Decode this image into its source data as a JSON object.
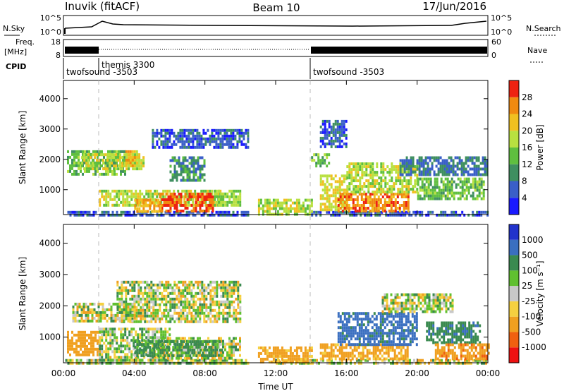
{
  "header": {
    "station": "Inuvik (fitACF)",
    "beam": "Beam 10",
    "date": "17/Jun/2016"
  },
  "top_panels": {
    "nsky_label": "N.Sky",
    "nsearch_label": "N.Search",
    "noise_ticks": [
      "10^5",
      "10^0"
    ],
    "freq_label_1": "Freq.",
    "freq_label_2": "[MHz]",
    "freq_ticks": [
      "18",
      "8"
    ],
    "nave_label": "Nave",
    "nave_ticks": [
      "60",
      "0"
    ],
    "cpid_label": "CPID",
    "cpid_segments": [
      {
        "label": "twofsound -3503",
        "start_hour": 0
      },
      {
        "label": "themis 3300",
        "start_hour": 2
      },
      {
        "label": "twofsound -3503",
        "start_hour": 14
      }
    ]
  },
  "x_axis": {
    "label": "Time UT",
    "ticks": [
      "00:00",
      "04:00",
      "08:00",
      "12:00",
      "16:00",
      "20:00",
      "00:00"
    ]
  },
  "chart_data": [
    {
      "type": "heatmap",
      "name": "power",
      "ylabel": "Slant Range [km]",
      "yticks": [
        1000,
        2000,
        3000,
        4000
      ],
      "ylim": [
        180,
        4600
      ],
      "xlim_hours": [
        0,
        24
      ],
      "colorbar_label": "Power [dB]",
      "colorbar_ticks": [
        "28",
        "24",
        "20",
        "16",
        "12",
        "8",
        "4"
      ],
      "colorbar_colors": [
        "#1a1aff",
        "#3a5fc8",
        "#3f8f60",
        "#5fbf3f",
        "#b8e040",
        "#f0c020",
        "#f08a10",
        "#ee2211"
      ],
      "colorbar_range": [
        0,
        32
      ],
      "regions": [
        {
          "t0": 0.1,
          "t1": 10.5,
          "r0": 180,
          "r1": 300,
          "value": 6
        },
        {
          "t0": 0.2,
          "t1": 3.5,
          "r0": 1500,
          "r1": 2300,
          "value": 14
        },
        {
          "t0": 1.0,
          "t1": 4.5,
          "r0": 1700,
          "r1": 2200,
          "value": 18
        },
        {
          "t0": 3.5,
          "t1": 4.3,
          "r0": 1800,
          "r1": 2300,
          "value": 22
        },
        {
          "t0": 2.0,
          "t1": 9.0,
          "r0": 500,
          "r1": 1000,
          "value": 18
        },
        {
          "t0": 5.4,
          "t1": 8.5,
          "r0": 250,
          "r1": 900,
          "value": 28
        },
        {
          "t0": 4.0,
          "t1": 5.5,
          "r0": 300,
          "r1": 700,
          "value": 24
        },
        {
          "t0": 8.5,
          "t1": 10.0,
          "r0": 500,
          "r1": 1000,
          "value": 16
        },
        {
          "t0": 5.0,
          "t1": 10.5,
          "r0": 2400,
          "r1": 3000,
          "value": 6
        },
        {
          "t0": 6.0,
          "t1": 8.0,
          "r0": 1300,
          "r1": 2100,
          "value": 10
        },
        {
          "t0": 14.0,
          "t1": 24.0,
          "r0": 180,
          "r1": 300,
          "value": 6
        },
        {
          "t0": 14.5,
          "t1": 16.0,
          "r0": 300,
          "r1": 1500,
          "value": 20
        },
        {
          "t0": 15.5,
          "t1": 19.5,
          "r0": 300,
          "r1": 900,
          "value": 26
        },
        {
          "t0": 16.0,
          "t1": 20.0,
          "r0": 900,
          "r1": 1900,
          "value": 18
        },
        {
          "t0": 14.0,
          "t1": 15.0,
          "r0": 1800,
          "r1": 2200,
          "value": 14
        },
        {
          "t0": 14.5,
          "t1": 16.0,
          "r0": 2400,
          "r1": 3300,
          "value": 6
        },
        {
          "t0": 20.0,
          "t1": 23.8,
          "r0": 700,
          "r1": 1400,
          "value": 14
        },
        {
          "t0": 19.0,
          "t1": 24.0,
          "r0": 1500,
          "r1": 2100,
          "value": 8
        },
        {
          "t0": 11.0,
          "t1": 14.0,
          "r0": 200,
          "r1": 700,
          "value": 18
        }
      ]
    },
    {
      "type": "heatmap",
      "name": "velocity",
      "ylabel": "Slant Range [km]",
      "yticks": [
        1000,
        2000,
        3000,
        4000
      ],
      "ylim": [
        180,
        4600
      ],
      "xlim_hours": [
        0,
        24
      ],
      "colorbar_label": "Velocity [m s⁻¹]",
      "colorbar_ticks": [
        "1000",
        "500",
        "100",
        "25",
        "-25",
        "-100",
        "-500",
        "-1000"
      ],
      "colorbar_colors": [
        "#ee1111",
        "#f06010",
        "#f0a020",
        "#f5d040",
        "#c8c8c8",
        "#60c030",
        "#3a8a50",
        "#3a6fc0",
        "#2233cc"
      ],
      "regions": [
        {
          "t0": 0.1,
          "t1": 10.5,
          "r0": 180,
          "r1": 300,
          "value": 25
        },
        {
          "t0": 3.0,
          "t1": 10.0,
          "r0": 1500,
          "r1": 2800,
          "value": 0
        },
        {
          "t0": 0.5,
          "t1": 4.0,
          "r0": 1500,
          "r1": 2100,
          "value": 0
        },
        {
          "t0": 0.2,
          "t1": 2.0,
          "r0": 400,
          "r1": 1200,
          "value": -300
        },
        {
          "t0": 2.0,
          "t1": 6.0,
          "r0": 300,
          "r1": 1300,
          "value": 40
        },
        {
          "t0": 5.5,
          "t1": 10.0,
          "r0": 300,
          "r1": 1000,
          "value": 0
        },
        {
          "t0": 4.0,
          "t1": 9.0,
          "r0": 400,
          "r1": 900,
          "value": 150
        },
        {
          "t0": 12.0,
          "t1": 24.0,
          "r0": 180,
          "r1": 300,
          "value": 0
        },
        {
          "t0": 11.0,
          "t1": 14.0,
          "r0": 200,
          "r1": 700,
          "value": -200
        },
        {
          "t0": 14.5,
          "t1": 19.5,
          "r0": 300,
          "r1": 800,
          "value": -200
        },
        {
          "t0": 15.5,
          "t1": 20.0,
          "r0": 800,
          "r1": 1800,
          "value": 600
        },
        {
          "t0": 18.0,
          "t1": 22.0,
          "r0": 1800,
          "r1": 2400,
          "value": 0
        },
        {
          "t0": 20.5,
          "t1": 23.5,
          "r0": 800,
          "r1": 1500,
          "value": 400
        },
        {
          "t0": 21.0,
          "t1": 24.0,
          "r0": 300,
          "r1": 800,
          "value": -400
        }
      ]
    }
  ]
}
